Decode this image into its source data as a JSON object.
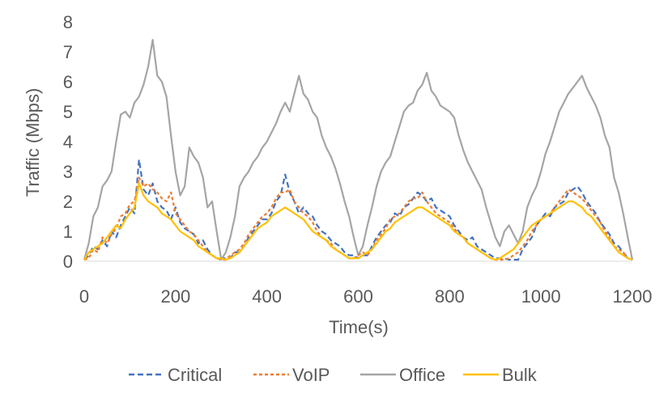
{
  "chart_data": {
    "type": "line",
    "title": "",
    "xlabel": "Time(s)",
    "ylabel": "Traffic (Mbps)",
    "xlim": [
      0,
      1200
    ],
    "ylim": [
      0,
      8
    ],
    "xticks": [
      "0",
      "200",
      "400",
      "600",
      "800",
      "1000",
      "1200"
    ],
    "yticks": [
      "0",
      "1",
      "2",
      "3",
      "4",
      "5",
      "6",
      "7",
      "8"
    ],
    "grid": false,
    "legend_position": "bottom",
    "x": [
      0,
      10,
      20,
      30,
      40,
      50,
      60,
      70,
      80,
      90,
      100,
      110,
      120,
      130,
      140,
      150,
      160,
      170,
      180,
      190,
      200,
      210,
      220,
      230,
      240,
      250,
      260,
      270,
      280,
      290,
      300,
      310,
      320,
      330,
      340,
      350,
      360,
      370,
      380,
      390,
      400,
      410,
      420,
      430,
      440,
      450,
      460,
      470,
      480,
      490,
      500,
      510,
      520,
      530,
      540,
      550,
      560,
      570,
      580,
      590,
      600,
      610,
      620,
      630,
      640,
      650,
      660,
      670,
      680,
      690,
      700,
      710,
      720,
      730,
      740,
      750,
      760,
      770,
      780,
      790,
      800,
      810,
      820,
      830,
      840,
      850,
      860,
      870,
      880,
      890,
      900,
      910,
      920,
      930,
      940,
      950,
      960,
      970,
      980,
      990,
      1000,
      1010,
      1020,
      1030,
      1040,
      1050,
      1060,
      1070,
      1080,
      1090,
      1100,
      1110,
      1120,
      1130,
      1140,
      1150,
      1160,
      1170,
      1180,
      1190,
      1200
    ],
    "series": [
      {
        "name": "Critical",
        "color": "#4472C4",
        "dash": "dashed",
        "values": [
          0.05,
          0.2,
          0.5,
          0.4,
          0.7,
          0.5,
          1.0,
          0.8,
          1.2,
          1.5,
          1.8,
          1.6,
          3.4,
          2.4,
          2.2,
          2.6,
          2.0,
          1.8,
          1.7,
          1.4,
          1.8,
          1.3,
          1.1,
          1.0,
          0.9,
          0.6,
          0.7,
          0.4,
          0.2,
          0.1,
          0.1,
          0.1,
          0.1,
          0.3,
          0.3,
          0.5,
          0.8,
          1.0,
          1.2,
          1.4,
          1.4,
          1.6,
          2.0,
          2.2,
          2.9,
          2.3,
          2.0,
          1.6,
          1.8,
          1.6,
          1.5,
          1.2,
          1.0,
          0.9,
          0.7,
          0.6,
          0.5,
          0.3,
          0.2,
          0.2,
          0.1,
          0.2,
          0.2,
          0.5,
          0.8,
          1.0,
          1.2,
          1.3,
          1.6,
          1.5,
          1.8,
          1.9,
          2.1,
          2.3,
          2.2,
          2.0,
          2.1,
          1.8,
          1.7,
          1.6,
          1.5,
          1.2,
          1.0,
          0.8,
          0.7,
          0.8,
          0.5,
          0.4,
          0.3,
          0.2,
          0.1,
          0.1,
          0.1,
          0.05,
          0.05,
          0.05,
          0.4,
          0.6,
          0.8,
          1.2,
          1.4,
          1.6,
          1.5,
          1.8,
          1.9,
          2.0,
          2.3,
          2.4,
          2.5,
          2.3,
          2.0,
          1.8,
          1.6,
          1.3,
          1.1,
          0.9,
          0.6,
          0.5,
          0.3,
          0.1,
          0.05
        ]
      },
      {
        "name": "VoIP",
        "color": "#ED7D31",
        "dash": "dotted",
        "values": [
          0.05,
          0.1,
          0.4,
          0.3,
          0.8,
          0.6,
          0.9,
          1.1,
          1.5,
          1.6,
          1.9,
          2.0,
          2.8,
          2.5,
          2.6,
          2.4,
          2.3,
          2.1,
          2.0,
          2.3,
          1.6,
          1.4,
          1.2,
          1.0,
          0.9,
          0.7,
          0.5,
          0.3,
          0.2,
          0.1,
          0.05,
          0.05,
          0.2,
          0.3,
          0.4,
          0.6,
          0.9,
          1.1,
          1.3,
          1.5,
          1.6,
          1.8,
          2.1,
          2.3,
          2.3,
          2.4,
          2.0,
          1.8,
          1.6,
          1.5,
          1.3,
          1.0,
          0.8,
          0.7,
          0.6,
          0.4,
          0.3,
          0.2,
          0.1,
          0.1,
          0.2,
          0.3,
          0.2,
          0.4,
          0.7,
          0.9,
          1.1,
          1.4,
          1.5,
          1.6,
          1.8,
          2.0,
          2.1,
          2.1,
          2.3,
          2.0,
          1.8,
          1.6,
          1.5,
          1.4,
          1.3,
          1.1,
          0.9,
          0.8,
          0.6,
          0.5,
          0.4,
          0.3,
          0.2,
          0.1,
          0.05,
          0.05,
          0.05,
          0.1,
          0.2,
          0.3,
          0.5,
          0.7,
          1.0,
          1.2,
          1.4,
          1.5,
          1.6,
          1.8,
          2.0,
          2.2,
          2.4,
          2.3,
          2.2,
          2.1,
          1.9,
          1.7,
          1.5,
          1.3,
          1.0,
          0.8,
          0.5,
          0.4,
          0.3,
          0.1,
          0.05
        ]
      },
      {
        "name": "Office",
        "color": "#A5A5A5",
        "dash": "solid",
        "values": [
          0.05,
          0.6,
          1.5,
          1.8,
          2.5,
          2.7,
          3.0,
          4.0,
          4.9,
          5.0,
          4.8,
          5.3,
          5.5,
          5.9,
          6.5,
          7.4,
          6.2,
          6.0,
          5.5,
          4.2,
          3.0,
          2.2,
          2.5,
          3.8,
          3.5,
          3.3,
          2.8,
          1.8,
          2.0,
          1.0,
          0.05,
          0.3,
          0.8,
          1.5,
          2.5,
          2.8,
          3.0,
          3.3,
          3.5,
          3.8,
          4.0,
          4.3,
          4.6,
          5.0,
          5.3,
          5.0,
          5.6,
          6.2,
          5.6,
          5.4,
          5.0,
          4.8,
          4.2,
          3.8,
          3.5,
          3.1,
          2.6,
          2.0,
          1.5,
          0.8,
          0.2,
          0.5,
          1.2,
          1.8,
          2.5,
          3.0,
          3.3,
          3.5,
          4.0,
          4.5,
          5.0,
          5.2,
          5.3,
          5.7,
          5.9,
          6.3,
          5.7,
          5.5,
          5.2,
          5.1,
          5.0,
          4.8,
          4.2,
          3.7,
          3.3,
          3.0,
          2.7,
          2.4,
          1.8,
          1.3,
          0.8,
          0.5,
          1.0,
          1.2,
          0.9,
          0.6,
          1.0,
          1.8,
          2.2,
          2.5,
          3.0,
          3.6,
          4.0,
          4.5,
          5.0,
          5.3,
          5.6,
          5.8,
          6.0,
          6.2,
          5.8,
          5.5,
          5.2,
          4.8,
          4.2,
          3.8,
          2.8,
          2.3,
          1.6,
          0.8,
          0.05
        ]
      },
      {
        "name": "Bulk",
        "color": "#FFC000",
        "dash": "solid",
        "values": [
          0.05,
          0.3,
          0.4,
          0.5,
          0.6,
          0.8,
          1.0,
          1.2,
          1.1,
          1.4,
          1.6,
          1.8,
          2.6,
          2.2,
          2.0,
          1.9,
          1.8,
          1.6,
          1.5,
          1.4,
          1.2,
          1.0,
          0.9,
          0.8,
          0.7,
          0.5,
          0.4,
          0.3,
          0.2,
          0.1,
          0.1,
          0.05,
          0.1,
          0.2,
          0.3,
          0.5,
          0.7,
          0.9,
          1.1,
          1.2,
          1.3,
          1.5,
          1.6,
          1.7,
          1.8,
          1.7,
          1.6,
          1.5,
          1.4,
          1.2,
          1.0,
          0.9,
          0.8,
          0.7,
          0.5,
          0.4,
          0.3,
          0.2,
          0.1,
          0.1,
          0.1,
          0.2,
          0.3,
          0.4,
          0.6,
          0.8,
          1.0,
          1.1,
          1.3,
          1.4,
          1.5,
          1.6,
          1.7,
          1.8,
          1.8,
          1.7,
          1.6,
          1.5,
          1.4,
          1.3,
          1.2,
          1.0,
          0.9,
          0.8,
          0.6,
          0.5,
          0.4,
          0.3,
          0.2,
          0.1,
          0.05,
          0.1,
          0.2,
          0.3,
          0.4,
          0.6,
          0.8,
          1.0,
          1.2,
          1.3,
          1.4,
          1.5,
          1.6,
          1.7,
          1.8,
          1.9,
          2.0,
          2.0,
          1.9,
          1.8,
          1.6,
          1.5,
          1.3,
          1.1,
          0.9,
          0.7,
          0.5,
          0.3,
          0.2,
          0.1,
          0.05
        ]
      }
    ]
  },
  "legend": {
    "items": [
      {
        "label": "Critical",
        "color": "#4472C4",
        "dash": "dashed"
      },
      {
        "label": "VoIP",
        "color": "#ED7D31",
        "dash": "dotted"
      },
      {
        "label": "Office",
        "color": "#A5A5A5",
        "dash": "solid"
      },
      {
        "label": "Bulk",
        "color": "#FFC000",
        "dash": "solid"
      }
    ]
  }
}
